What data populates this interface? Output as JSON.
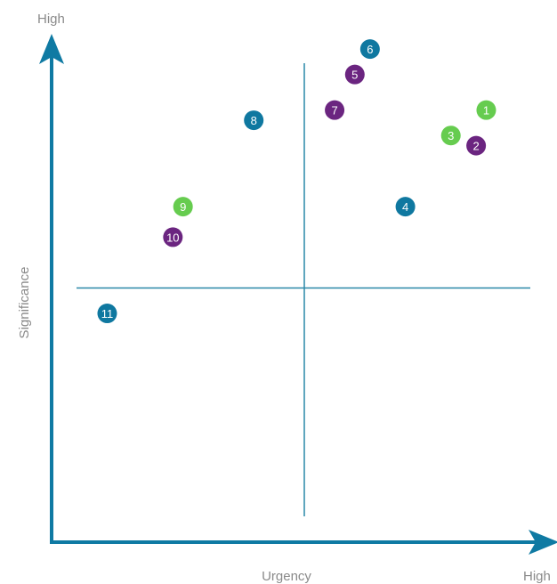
{
  "chart_data": {
    "type": "scatter",
    "title": "",
    "xlabel": "Urgency",
    "ylabel": "Significance",
    "x_high_label": "High",
    "y_high_label": "High",
    "xlim": [
      0,
      10
    ],
    "ylim": [
      0,
      10
    ],
    "quadrant_split": {
      "x": 5,
      "y": 5
    },
    "grid": false,
    "colors": {
      "axis": "#0f7aa3",
      "quadrant_line": "#2a88a8",
      "teal": "#0f78a0",
      "purple": "#6b2580",
      "green": "#66cc4f"
    },
    "points": [
      {
        "label": "1",
        "x": 8.6,
        "y": 8.5,
        "color": "green"
      },
      {
        "label": "2",
        "x": 8.4,
        "y": 7.8,
        "color": "purple"
      },
      {
        "label": "3",
        "x": 7.9,
        "y": 8.0,
        "color": "green"
      },
      {
        "label": "4",
        "x": 7.0,
        "y": 6.6,
        "color": "teal"
      },
      {
        "label": "5",
        "x": 6.0,
        "y": 9.2,
        "color": "purple"
      },
      {
        "label": "6",
        "x": 6.3,
        "y": 9.7,
        "color": "teal"
      },
      {
        "label": "7",
        "x": 5.6,
        "y": 8.5,
        "color": "purple"
      },
      {
        "label": "8",
        "x": 4.0,
        "y": 8.3,
        "color": "teal"
      },
      {
        "label": "9",
        "x": 2.6,
        "y": 6.6,
        "color": "green"
      },
      {
        "label": "10",
        "x": 2.4,
        "y": 6.0,
        "color": "purple"
      },
      {
        "label": "11",
        "x": 1.1,
        "y": 4.5,
        "color": "teal"
      }
    ]
  }
}
